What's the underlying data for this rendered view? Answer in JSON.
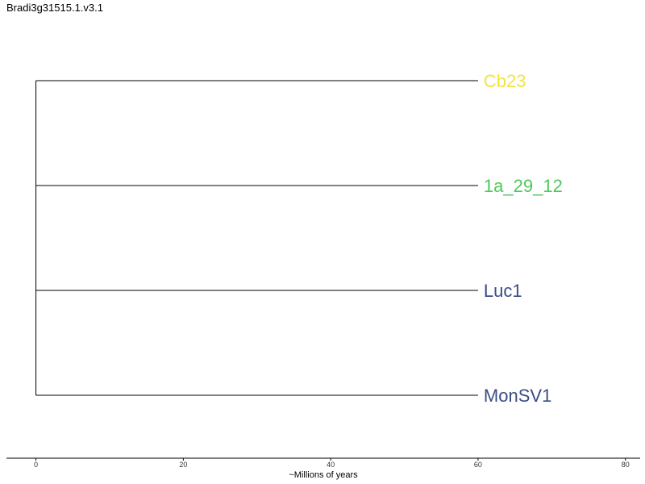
{
  "title": "Bradi3g31515.1.v3.1",
  "chart_data": {
    "type": "dendrogram",
    "root_x": 0,
    "leaves": [
      {
        "label": "Cb23",
        "x": 60,
        "color": "#f0e442"
      },
      {
        "label": "1a_29_12",
        "x": 60,
        "color": "#4dc95a"
      },
      {
        "label": "Luc1",
        "x": 60,
        "color": "#3a4d84"
      },
      {
        "label": "MonSV1",
        "x": 60,
        "color": "#3a4d84"
      }
    ],
    "xaxis": {
      "label": "~Millions of years",
      "ticks": [
        0,
        20,
        40,
        60,
        80
      ],
      "range": [
        -4,
        82
      ]
    }
  }
}
